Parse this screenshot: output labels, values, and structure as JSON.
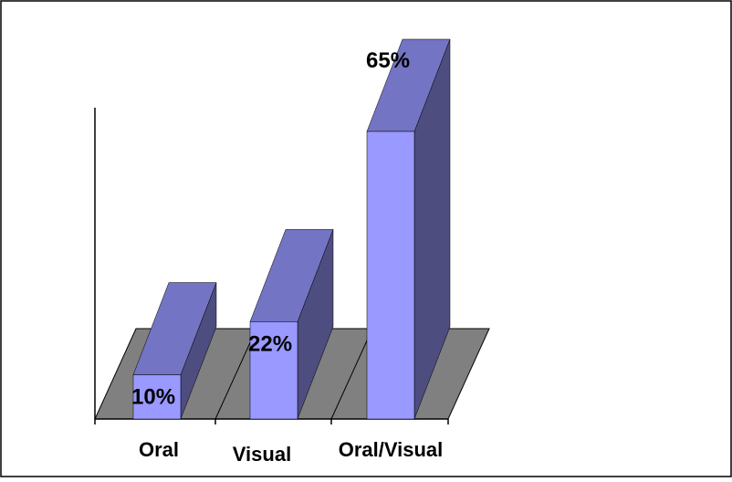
{
  "chart_data": {
    "type": "bar",
    "categories": [
      "Oral",
      "Visual",
      "Oral/Visual"
    ],
    "values": [
      10,
      22,
      65
    ],
    "value_labels": [
      "10%",
      "22%",
      "65%"
    ],
    "title": "",
    "xlabel": "",
    "ylabel": "",
    "ylim": [
      0,
      65
    ],
    "grid": false,
    "legend": "none",
    "style": "3d-column",
    "colors": {
      "bar_front": "#9999ff",
      "bar_top": "#7474c4",
      "bar_side": "#4d4d80",
      "floor": "#808080",
      "frame": "#000000"
    }
  }
}
